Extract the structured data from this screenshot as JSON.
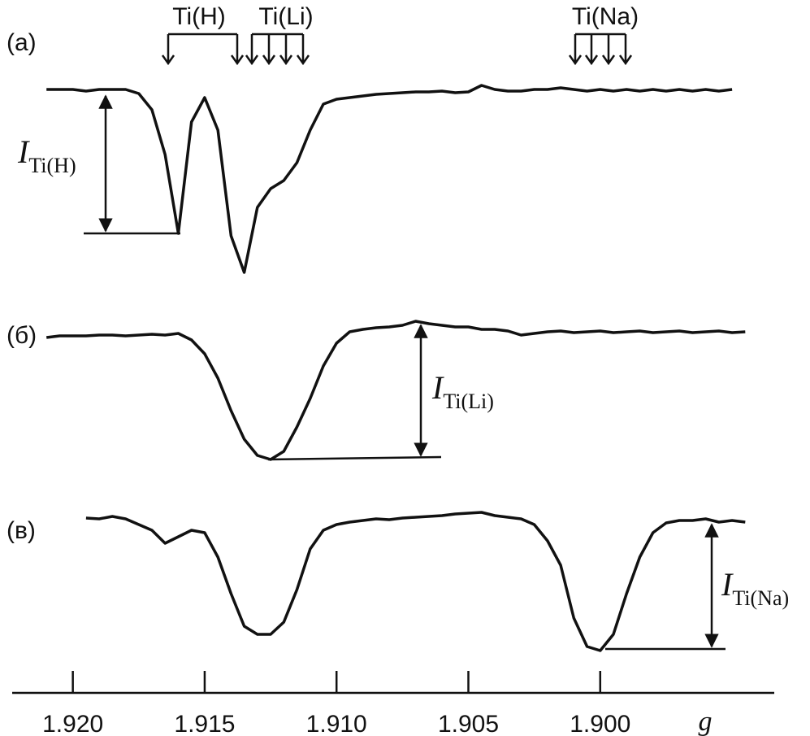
{
  "chart_data": {
    "type": "line",
    "xlabel": "g",
    "xlim": [
      1.9223,
      1.8934
    ],
    "xticks": [
      {
        "value": 1.92,
        "label": "1.920"
      },
      1.915,
      {
        "value": 1.91,
        "label": "1.910"
      },
      1.905,
      {
        "value": 1.9,
        "label": "1.900"
      }
    ],
    "ylim": [
      -240,
      20
    ],
    "x": [
      1.921,
      1.9205,
      1.92,
      1.9195,
      1.919,
      1.9185,
      1.918,
      1.9175,
      1.917,
      1.9165,
      1.916,
      1.9155,
      1.915,
      1.9145,
      1.914,
      1.9135,
      1.913,
      1.9125,
      1.912,
      1.9115,
      1.911,
      1.9105,
      1.91,
      1.9095,
      1.909,
      1.9085,
      1.908,
      1.9075,
      1.907,
      1.9065,
      1.906,
      1.9055,
      1.905,
      1.9045,
      1.904,
      1.9035,
      1.903,
      1.9025,
      1.902,
      1.9015,
      1.901,
      1.9005,
      1.9,
      1.8995,
      1.899,
      1.8985,
      1.898,
      1.8975,
      1.897,
      1.8965,
      1.896,
      1.8955,
      1.895,
      1.8945
    ],
    "series": [
      {
        "name": "(a)",
        "color": "#111111",
        "values": [
          0,
          0,
          0,
          -2,
          0,
          0,
          0,
          -5,
          -25,
          -80,
          -177,
          -40,
          -10,
          -50,
          -180,
          -225,
          -145,
          -122,
          -112,
          -90,
          -50,
          -18,
          -12,
          -10,
          -8,
          -6,
          -5,
          -4,
          -3,
          -3,
          -2,
          -4,
          -3,
          5,
          0,
          -2,
          -2,
          0,
          0,
          2,
          0,
          -2,
          0,
          -2,
          0,
          -2,
          0,
          -2,
          0,
          -2,
          0,
          -2,
          0,
          null
        ]
      },
      {
        "name": "(б)",
        "color": "#111111",
        "values": [
          -5,
          -3,
          -3,
          -3,
          -2,
          -2,
          -3,
          -2,
          -1,
          -2,
          0,
          -8,
          -25,
          -55,
          -95,
          -130,
          -150,
          -155,
          -145,
          -115,
          -80,
          -40,
          -12,
          2,
          5,
          7,
          8,
          10,
          15,
          12,
          10,
          8,
          8,
          5,
          5,
          3,
          -2,
          0,
          2,
          3,
          1,
          2,
          3,
          1,
          2,
          3,
          1,
          2,
          3,
          1,
          2,
          3,
          1,
          2
        ]
      },
      {
        "name": "(в)",
        "color": "#111111",
        "values": [
          null,
          null,
          null,
          3,
          2,
          5,
          2,
          -5,
          -12,
          -28,
          -20,
          -12,
          -15,
          -45,
          -90,
          -130,
          -140,
          -140,
          -125,
          -85,
          -35,
          -12,
          -5,
          -2,
          0,
          2,
          1,
          3,
          4,
          5,
          6,
          8,
          9,
          10,
          6,
          4,
          2,
          -5,
          -25,
          -55,
          -120,
          -155,
          -160,
          -140,
          -90,
          -45,
          -15,
          -3,
          0,
          0,
          2,
          -2,
          0,
          -2
        ]
      }
    ],
    "annotations": [
      "Ti(H)",
      "Ti(Li)",
      "Ti(Na)"
    ],
    "intensity_labels": [
      {
        "symbol": "I",
        "sub": "Ti(H)"
      },
      {
        "symbol": "I",
        "sub": "Ti(Li)"
      },
      {
        "symbol": "I",
        "sub": "Ti(Na)"
      }
    ]
  }
}
